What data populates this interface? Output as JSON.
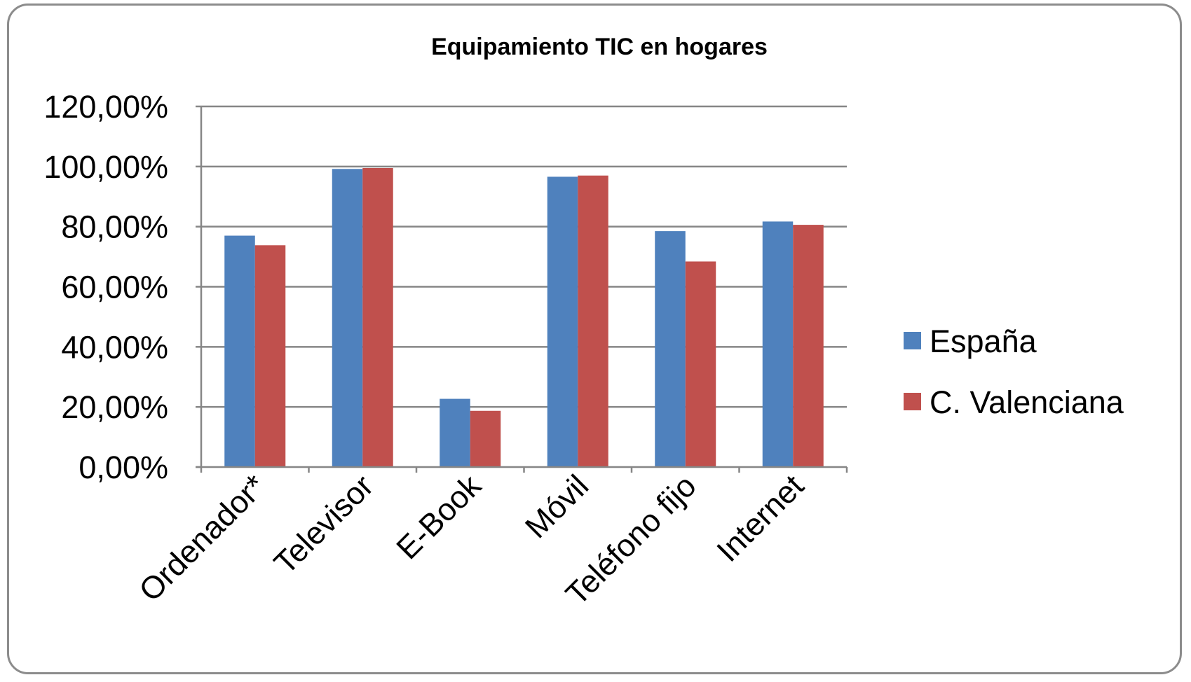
{
  "chart_data": {
    "type": "bar",
    "title": "Equipamiento TIC en hogares",
    "xlabel": "",
    "ylabel": "",
    "categories": [
      "Ordenador*",
      "Televisor",
      "E-Book",
      "Móvil",
      "Teléfono fijo",
      "Internet"
    ],
    "series": [
      {
        "name": "España",
        "color": "#4f81bd",
        "values": [
          77.0,
          99.2,
          22.7,
          96.6,
          78.5,
          81.7
        ]
      },
      {
        "name": "C. Valenciana",
        "color": "#c0504d",
        "values": [
          73.8,
          99.5,
          18.7,
          97.0,
          68.4,
          80.6
        ]
      }
    ],
    "ylim": [
      0,
      120
    ],
    "yticks": [
      0,
      20,
      40,
      60,
      80,
      100,
      120
    ],
    "ytick_labels": [
      "0,00%",
      "20,00%",
      "40,00%",
      "60,00%",
      "80,00%",
      "100,00%",
      "120,00%"
    ],
    "grid": true,
    "legend_position": "right"
  }
}
